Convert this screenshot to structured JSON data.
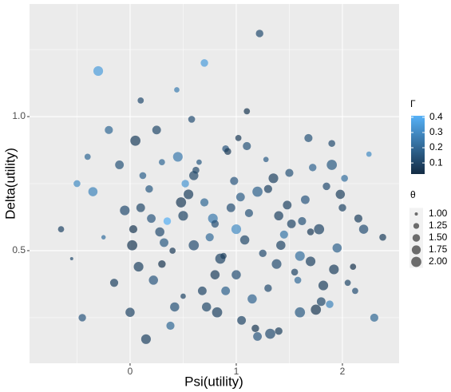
{
  "chart_data": {
    "type": "scatter",
    "x_label": "Psi(utility)",
    "y_label": "Delta(utility)",
    "xlim": [
      -0.947,
      2.534
    ],
    "ylim": [
      0.08,
      1.42
    ],
    "xticks": [
      0,
      1,
      2
    ],
    "yticks": [
      0.5,
      {
        "value": 1,
        "label": "1.0"
      }
    ],
    "xminor": [
      -0.5,
      0.5,
      1.5
    ],
    "yminor": [
      0.25,
      0.75,
      1.25
    ],
    "grid": true,
    "opacity": 0.7,
    "color_title": "Γ",
    "color_low": "#132B43",
    "color_high": "#56B1F7",
    "color_lim": [
      0.027,
      0.41
    ],
    "color_ticks": [
      0.1,
      0.2,
      0.3,
      0.4
    ],
    "size_title": "θ",
    "size_lim": [
      0.95,
      2.05
    ],
    "size_ticks": [
      {
        "value": 1,
        "label": "1.00"
      },
      {
        "value": 1.25,
        "label": "1.25"
      },
      {
        "value": 1.5,
        "label": "1.50"
      },
      {
        "value": 1.75,
        "label": "1.75"
      },
      {
        "value": 2,
        "label": "2.00"
      }
    ],
    "series": [
      {
        "x": [
          -0.5,
          -0.3,
          -0.2,
          0.0,
          0.05,
          0.1,
          0.2,
          0.3,
          0.45,
          0.5,
          0.6,
          0.7,
          0.8,
          0.9,
          1.0,
          1.05,
          1.1,
          1.2,
          1.3,
          1.4,
          1.5,
          1.6,
          1.7,
          1.8,
          1.9,
          2.0,
          2.1,
          2.2,
          2.3,
          2.38,
          -0.65,
          -0.45,
          -0.35,
          -0.15,
          -0.05,
          0.02,
          0.12,
          0.25,
          0.35,
          0.42,
          0.55,
          0.65,
          0.75,
          0.85,
          0.95,
          1.02,
          1.15,
          1.25,
          1.35,
          1.45,
          1.55,
          1.65,
          1.75,
          1.85,
          1.95,
          2.05,
          2.15,
          2.25,
          -0.25,
          -0.1,
          0.08,
          0.18,
          0.28,
          0.38,
          0.48,
          0.58,
          0.68,
          0.78,
          0.88,
          0.98,
          1.08,
          1.18,
          1.28,
          1.38,
          1.48,
          1.58,
          1.68,
          1.78,
          1.88,
          1.98,
          -0.55,
          -0.4,
          0.15,
          0.32,
          0.52,
          0.72,
          0.92,
          1.12,
          1.32,
          1.52,
          1.72,
          1.92,
          2.12,
          0.03,
          0.22,
          0.44,
          0.62,
          0.82,
          1.04,
          1.22,
          1.42,
          1.62,
          1.82,
          2.02,
          0.1,
          0.4,
          0.7,
          1.0,
          1.3,
          1.6,
          1.9,
          0.5,
          0.9,
          1.4,
          1.1,
          0.6,
          0.3,
          1.7,
          0.8,
          1.2
        ],
        "y": [
          0.75,
          1.17,
          0.95,
          0.27,
          0.91,
          1.06,
          0.62,
          0.45,
          0.85,
          0.33,
          0.52,
          0.68,
          0.41,
          0.88,
          0.58,
          0.24,
          1.02,
          0.72,
          0.36,
          0.63,
          0.79,
          0.48,
          0.57,
          0.31,
          0.82,
          0.66,
          0.44,
          0.58,
          0.25,
          0.55,
          0.58,
          0.25,
          0.72,
          0.38,
          0.65,
          0.52,
          0.78,
          0.95,
          0.61,
          0.29,
          0.71,
          0.83,
          0.55,
          0.47,
          0.66,
          0.92,
          0.32,
          0.49,
          0.77,
          0.56,
          0.42,
          0.69,
          0.28,
          0.74,
          0.51,
          0.38,
          0.62,
          0.86,
          0.55,
          0.82,
          0.44,
          0.73,
          0.57,
          0.22,
          0.68,
          0.99,
          0.35,
          0.62,
          0.48,
          0.76,
          0.54,
          0.21,
          0.84,
          0.45,
          0.67,
          0.39,
          0.92,
          0.58,
          0.3,
          0.71,
          0.47,
          0.85,
          0.17,
          0.53,
          0.75,
          0.29,
          0.87,
          0.64,
          0.19,
          0.6,
          0.81,
          0.43,
          0.35,
          0.58,
          0.39,
          1.1,
          0.8,
          0.27,
          0.7,
          1.31,
          0.52,
          0.61,
          0.37,
          0.77,
          0.66,
          0.5,
          1.2,
          0.41,
          0.73,
          0.27,
          0.9,
          0.63,
          0.35,
          0.2,
          0.89,
          0.78,
          0.83,
          0.46,
          0.6,
          0.18
        ],
        "sizes": [
          1.4,
          1.9,
          1.6,
          1.8,
          2.0,
          1.3,
          1.7,
          1.5,
          1.9,
          1.2,
          2.0,
          1.6,
          1.8,
          1.4,
          1.9,
          1.7,
          1.3,
          2.0,
          1.5,
          1.8,
          1.6,
          1.9,
          1.4,
          1.7,
          2.0,
          1.5,
          1.3,
          1.8,
          1.6,
          1.4,
          1.3,
          1.5,
          1.8,
          1.6,
          1.9,
          2.0,
          1.4,
          1.7,
          1.5,
          1.8,
          1.9,
          1.2,
          1.6,
          2.0,
          1.7,
          1.3,
          1.8,
          1.5,
          1.9,
          1.6,
          1.4,
          1.7,
          2.0,
          1.5,
          1.8,
          1.3,
          1.6,
          1.2,
          1.1,
          1.7,
          1.9,
          1.5,
          1.8,
          1.6,
          2.0,
          1.4,
          1.7,
          1.9,
          1.3,
          1.6,
          1.8,
          1.5,
          1.2,
          1.9,
          1.7,
          1.4,
          1.6,
          2.0,
          1.5,
          1.8,
          1.0,
          1.3,
          1.9,
          1.7,
          1.5,
          1.8,
          1.4,
          1.6,
          2.0,
          1.7,
          1.5,
          1.9,
          1.3,
          1.6,
          1.8,
          1.2,
          1.4,
          2.0,
          1.7,
          1.5,
          1.8,
          1.6,
          1.9,
          1.4,
          1.7,
          1.3,
          1.5,
          1.8,
          1.6,
          2.0,
          1.4,
          1.9,
          1.7,
          1.5,
          1.6,
          1.8,
          1.3,
          1.9,
          1.5,
          1.7
        ],
        "colors": [
          0.3,
          0.35,
          0.2,
          0.1,
          0.08,
          0.12,
          0.15,
          0.05,
          0.25,
          0.1,
          0.12,
          0.2,
          0.08,
          0.15,
          0.3,
          0.1,
          0.06,
          0.18,
          0.12,
          0.09,
          0.14,
          0.22,
          0.07,
          0.11,
          0.16,
          0.1,
          0.05,
          0.13,
          0.2,
          0.08,
          0.1,
          0.15,
          0.28,
          0.09,
          0.12,
          0.06,
          0.18,
          0.11,
          0.4,
          0.14,
          0.08,
          0.16,
          0.21,
          0.1,
          0.13,
          0.07,
          0.19,
          0.12,
          0.09,
          0.24,
          0.1,
          0.15,
          0.06,
          0.12,
          0.18,
          0.11,
          0.08,
          0.3,
          0.22,
          0.14,
          0.09,
          0.16,
          0.12,
          0.2,
          0.07,
          0.13,
          0.1,
          0.25,
          0.08,
          0.15,
          0.11,
          0.06,
          0.17,
          0.12,
          0.09,
          0.21,
          0.14,
          0.1,
          0.28,
          0.08,
          0.12,
          0.2,
          0.09,
          0.16,
          0.33,
          0.11,
          0.07,
          0.14,
          0.12,
          0.1,
          0.19,
          0.08,
          0.13,
          0.06,
          0.15,
          0.26,
          0.11,
          0.09,
          0.17,
          0.12,
          0.1,
          0.14,
          0.08,
          0.22,
          0.11,
          0.07,
          0.35,
          0.13,
          0.09,
          0.16,
          0.12,
          0.1,
          0.18,
          0.08,
          0.14,
          0.11,
          0.2,
          0.09,
          0.13,
          0.15
        ]
      }
    ]
  }
}
